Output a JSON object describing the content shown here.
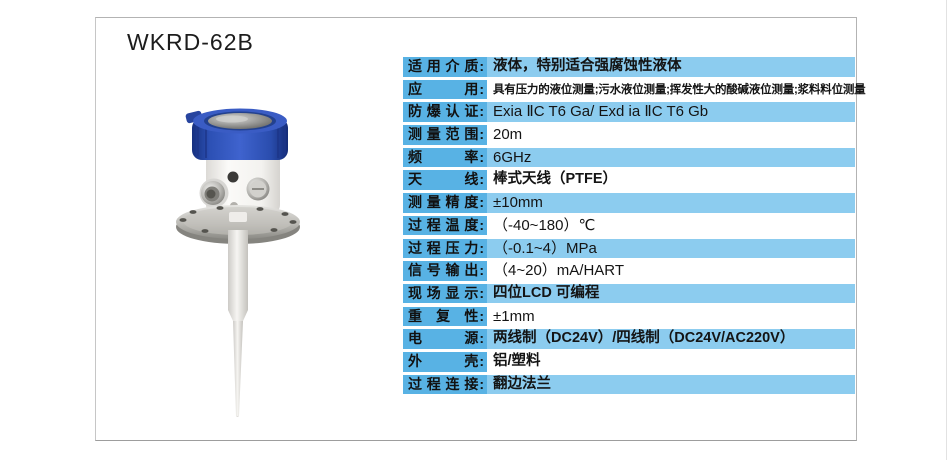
{
  "page": {
    "title": "WKRD-62B"
  },
  "product_image": {
    "name": "radar-level-transmitter-with-flange-and-rod-antenna",
    "colors": {
      "cap_blue": "#2c4fb0",
      "body_white": "#f5f4f1",
      "flange_steel": "#b4b3ae",
      "rod_white": "#eceae6"
    }
  },
  "spec_table": {
    "colon": ":",
    "colors": {
      "label_bg": "#58b2e4",
      "highlight_row_bg": "#8cccef"
    },
    "rows": [
      {
        "label": "适用介质",
        "value": "液体，特别适合强腐蚀性液体"
      },
      {
        "label": "应用",
        "value": "具有压力的液位测量;污水液位测量;挥发性大的酸碱液位测量;浆料料位测量"
      },
      {
        "label": "防爆认证",
        "value": "Exia ⅡC T6 Ga/ Exd ia ⅡC T6 Gb"
      },
      {
        "label": "测量范围",
        "value": "20m"
      },
      {
        "label": "频率",
        "value": "6GHz"
      },
      {
        "label": "天线",
        "value": "棒式天线（PTFE）"
      },
      {
        "label": "测量精度",
        "value": "±10mm"
      },
      {
        "label": "过程温度",
        "value": "（-40~180）℃"
      },
      {
        "label": "过程压力",
        "value": "（-0.1~4）MPa"
      },
      {
        "label": "信号输出",
        "value": "（4~20）mA/HART"
      },
      {
        "label": "现场显示",
        "value": "四位LCD 可编程"
      },
      {
        "label": "重复性",
        "value": "±1mm"
      },
      {
        "label": "电源",
        "value": "两线制（DC24V）/四线制（DC24V/AC220V）"
      },
      {
        "label": "外壳",
        "value": "铝/塑料"
      },
      {
        "label": "过程连接",
        "value": "翻边法兰"
      }
    ]
  }
}
